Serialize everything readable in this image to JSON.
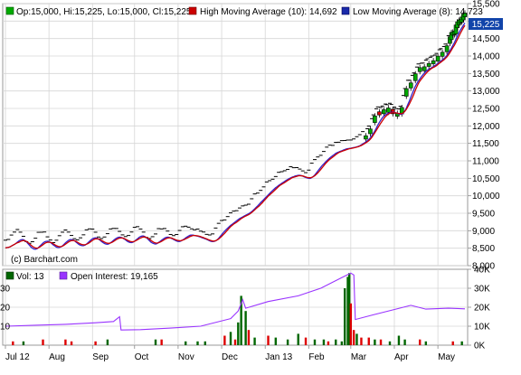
{
  "chart_data": [
    {
      "type": "ohlc",
      "title": "",
      "legend": {
        "ohlc": "Op:15,000, Hi:15,225, Lo:15,000, Cl:15,225",
        "high_ma": "High Moving Average (10): 14,692",
        "low_ma": "Low Moving Average (8): 14,723"
      },
      "colors": {
        "up": "#00aa00",
        "down": "#dd0000",
        "high_ma": "#cc0000",
        "low_ma": "#3322cc",
        "interest": "#9933ff"
      },
      "last_price_label": "15,225",
      "watermark": "(c) Barchart.com",
      "ylim": [
        8000,
        15500
      ],
      "yticks": [
        8000,
        8500,
        9000,
        9500,
        10000,
        10500,
        11000,
        11500,
        12000,
        12500,
        13000,
        13500,
        14000,
        14500,
        15000,
        15500
      ],
      "ytick_labels": [
        "8,000",
        "8,500",
        "9,000",
        "9,500",
        "10,000",
        "10,500",
        "11,000",
        "11,500",
        "12,000",
        "12,500",
        "13,000",
        "13,500",
        "14,000",
        "14,500",
        "15,000",
        "15,500"
      ],
      "months": [
        "Jul 12",
        "Aug",
        "Sep",
        "Oct",
        "Nov",
        "Dec",
        "Jan 13",
        "Feb",
        "Mar",
        "Apr",
        "May"
      ],
      "month_positions": [
        0,
        29,
        58,
        86,
        115,
        144,
        173,
        202,
        230,
        259,
        288
      ],
      "days": 307,
      "trend": [
        [
          0,
          8550
        ],
        [
          8,
          8850
        ],
        [
          16,
          8450
        ],
        [
          24,
          8800
        ],
        [
          32,
          8500
        ],
        [
          40,
          8850
        ],
        [
          48,
          8550
        ],
        [
          56,
          8900
        ],
        [
          64,
          8600
        ],
        [
          72,
          8900
        ],
        [
          80,
          8650
        ],
        [
          88,
          8950
        ],
        [
          96,
          8600
        ],
        [
          104,
          8900
        ],
        [
          112,
          8700
        ],
        [
          120,
          8950
        ],
        [
          128,
          8850
        ],
        [
          136,
          8700
        ],
        [
          144,
          9100
        ],
        [
          152,
          9400
        ],
        [
          160,
          9550
        ],
        [
          168,
          9900
        ],
        [
          176,
          10250
        ],
        [
          184,
          10500
        ],
        [
          192,
          10650
        ],
        [
          200,
          10500
        ],
        [
          208,
          10950
        ],
        [
          216,
          11250
        ],
        [
          224,
          11400
        ],
        [
          232,
          11450
        ],
        [
          240,
          11700
        ],
        [
          248,
          12350
        ],
        [
          256,
          12450
        ],
        [
          262,
          12300
        ],
        [
          268,
          13100
        ],
        [
          276,
          13600
        ],
        [
          284,
          13800
        ],
        [
          292,
          14100
        ],
        [
          298,
          14650
        ],
        [
          302,
          15000
        ],
        [
          306,
          15200
        ]
      ]
    },
    {
      "type": "bar",
      "legend": {
        "vol": "Vol: 13",
        "oi": "Open Interest: 19,165"
      },
      "ylim": [
        0,
        40000
      ],
      "yticks": [
        0,
        10000,
        20000,
        30000,
        40000
      ],
      "ytick_labels": [
        "0K",
        "10K",
        "20K",
        "30K",
        "40K"
      ],
      "left_tick_labels": [
        "30",
        "20",
        "10"
      ],
      "left_ylim": [
        0,
        40
      ],
      "open_interest": [
        [
          0,
          10000
        ],
        [
          20,
          10500
        ],
        [
          40,
          11000
        ],
        [
          60,
          11800
        ],
        [
          72,
          12500
        ],
        [
          76,
          15000
        ],
        [
          77,
          8000
        ],
        [
          90,
          8200
        ],
        [
          110,
          9000
        ],
        [
          130,
          10000
        ],
        [
          150,
          14000
        ],
        [
          155,
          18000
        ],
        [
          158,
          24000
        ],
        [
          160,
          19500
        ],
        [
          175,
          23000
        ],
        [
          195,
          26000
        ],
        [
          210,
          30000
        ],
        [
          225,
          36000
        ],
        [
          230,
          38000
        ],
        [
          232,
          37000
        ],
        [
          233,
          13500
        ],
        [
          245,
          16000
        ],
        [
          260,
          19000
        ],
        [
          270,
          21000
        ],
        [
          280,
          19000
        ],
        [
          295,
          19500
        ],
        [
          306,
          19165
        ]
      ],
      "volume": [
        [
          5,
          2,
          "down"
        ],
        [
          12,
          2,
          "up"
        ],
        [
          25,
          3,
          "down"
        ],
        [
          40,
          3,
          "down"
        ],
        [
          44,
          2,
          "down"
        ],
        [
          60,
          2,
          "down"
        ],
        [
          68,
          3,
          "up"
        ],
        [
          100,
          3,
          "up"
        ],
        [
          104,
          3,
          "down"
        ],
        [
          120,
          2,
          "up"
        ],
        [
          128,
          2,
          "up"
        ],
        [
          133,
          2,
          "up"
        ],
        [
          146,
          5,
          "down"
        ],
        [
          150,
          7,
          "up"
        ],
        [
          153,
          3,
          "down"
        ],
        [
          155,
          12,
          "up"
        ],
        [
          157,
          26,
          "up"
        ],
        [
          160,
          18,
          "up"
        ],
        [
          162,
          8,
          "down"
        ],
        [
          166,
          4,
          "up"
        ],
        [
          175,
          5,
          "down"
        ],
        [
          180,
          4,
          "up"
        ],
        [
          188,
          3,
          "up"
        ],
        [
          195,
          6,
          "up"
        ],
        [
          200,
          4,
          "down"
        ],
        [
          206,
          3,
          "up"
        ],
        [
          212,
          3,
          "up"
        ],
        [
          215,
          2,
          "down"
        ],
        [
          220,
          3,
          "up"
        ],
        [
          224,
          2,
          "up"
        ],
        [
          226,
          30,
          "up"
        ],
        [
          228,
          36,
          "up"
        ],
        [
          229,
          38,
          "up"
        ],
        [
          230,
          22,
          "down"
        ],
        [
          232,
          8,
          "down"
        ],
        [
          234,
          6,
          "up"
        ],
        [
          237,
          4,
          "down"
        ],
        [
          242,
          4,
          "down"
        ],
        [
          246,
          3,
          "up"
        ],
        [
          250,
          3,
          "down"
        ],
        [
          256,
          2,
          "up"
        ],
        [
          262,
          5,
          "up"
        ],
        [
          266,
          3,
          "up"
        ],
        [
          276,
          3,
          "down"
        ],
        [
          280,
          2,
          "up"
        ],
        [
          298,
          2,
          "down"
        ],
        [
          304,
          2,
          "up"
        ]
      ]
    }
  ]
}
